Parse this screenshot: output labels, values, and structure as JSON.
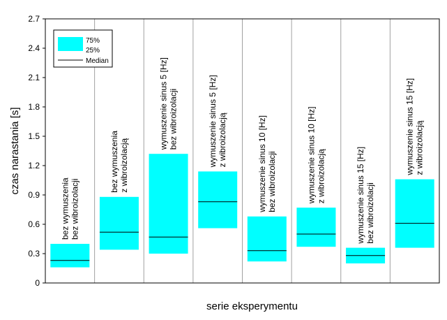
{
  "chart_data": {
    "type": "box",
    "xlabel": "serie eksperymentu",
    "ylabel": "czas narastania [s]",
    "ylim": [
      0,
      2.7
    ],
    "yticks": [
      "0",
      "0.3",
      "0.6",
      "0.9",
      "1.2",
      "1.5",
      "1.8",
      "2.1",
      "2.4",
      "2.7"
    ],
    "grid": "vertical separators",
    "legend": {
      "placement": "top-left",
      "box_label_top": "75%",
      "box_label_bottom": "25%",
      "median_label": "Median"
    },
    "box_color": "#00ffff",
    "categories": [
      {
        "label_lines": [
          "bez wymuszenia",
          "bez wibroizolacji"
        ],
        "q1": 0.16,
        "median": 0.23,
        "q3": 0.4
      },
      {
        "label_lines": [
          "bez wymuszenia",
          "z wibroizolacją"
        ],
        "q1": 0.34,
        "median": 0.52,
        "q3": 0.88
      },
      {
        "label_lines": [
          "wymuszenie sinus 5 [Hz]",
          "bez wibroizolacji"
        ],
        "q1": 0.3,
        "median": 0.47,
        "q3": 1.32
      },
      {
        "label_lines": [
          "wymuszenie sinus 5 [Hz]",
          "z wibroizolacją"
        ],
        "q1": 0.56,
        "median": 0.83,
        "q3": 1.14
      },
      {
        "label_lines": [
          "wymuszenie sinus 10 [Hz]",
          "bez wibroizolacji"
        ],
        "q1": 0.22,
        "median": 0.33,
        "q3": 0.68
      },
      {
        "label_lines": [
          "wymuszenie sinus 10 [Hz]",
          "z wibroizolacją"
        ],
        "q1": 0.37,
        "median": 0.5,
        "q3": 0.77
      },
      {
        "label_lines": [
          "wymuszenie sinus 15 [Hz]",
          "bez wibroizolacji"
        ],
        "q1": 0.2,
        "median": 0.28,
        "q3": 0.36
      },
      {
        "label_lines": [
          "wymuszenie sinus 15 [Hz]",
          "z wibroizolacją"
        ],
        "q1": 0.36,
        "median": 0.61,
        "q3": 1.06
      }
    ]
  }
}
